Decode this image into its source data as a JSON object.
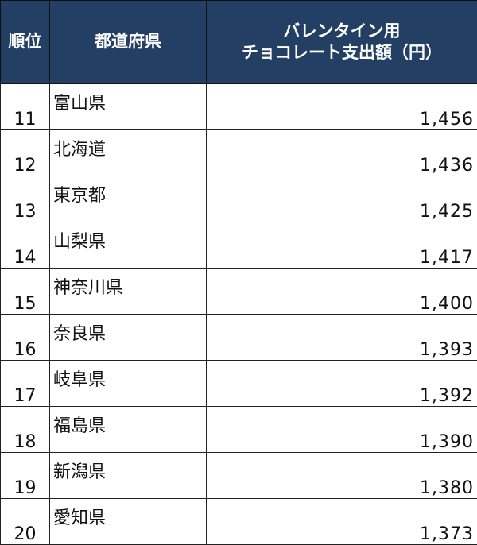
{
  "header": {
    "rank": "順位",
    "prefecture": "都道府県",
    "amount_line1": "バレンタイン用",
    "amount_line2": "チョコレート支出額（円）"
  },
  "rows": [
    {
      "rank": "11",
      "prefecture": "富山県",
      "amount": "1,456"
    },
    {
      "rank": "12",
      "prefecture": "北海道",
      "amount": "1,436"
    },
    {
      "rank": "13",
      "prefecture": "東京都",
      "amount": "1,425"
    },
    {
      "rank": "14",
      "prefecture": "山梨県",
      "amount": "1,417"
    },
    {
      "rank": "15",
      "prefecture": "神奈川県",
      "amount": "1,400"
    },
    {
      "rank": "16",
      "prefecture": "奈良県",
      "amount": "1,393"
    },
    {
      "rank": "17",
      "prefecture": "岐阜県",
      "amount": "1,392"
    },
    {
      "rank": "18",
      "prefecture": "福島県",
      "amount": "1,390"
    },
    {
      "rank": "19",
      "prefecture": "新潟県",
      "amount": "1,380"
    },
    {
      "rank": "20",
      "prefecture": "愛知県",
      "amount": "1,373"
    }
  ],
  "colors": {
    "header_bg": "#233f63",
    "header_text": "#ffffff"
  }
}
